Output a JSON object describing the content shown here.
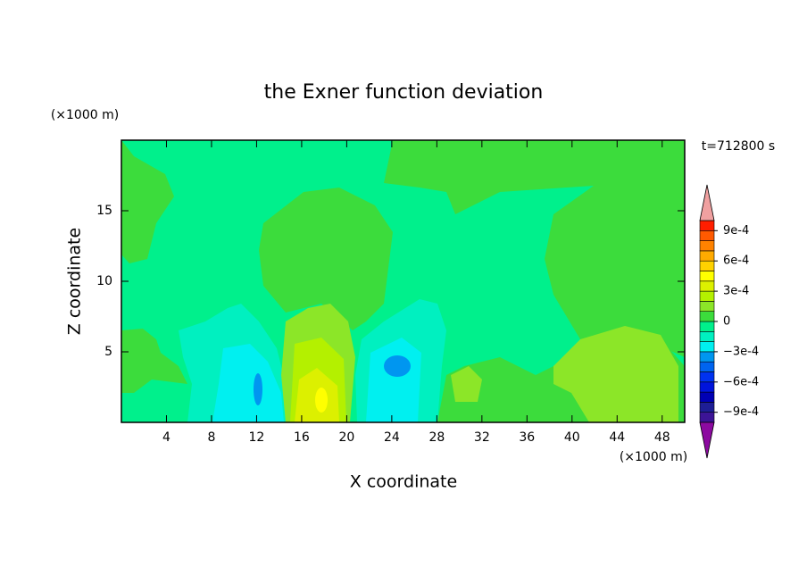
{
  "chart_data": {
    "type": "contour",
    "title": "the Exner function deviation",
    "x_label": "X coordinate",
    "y_label": "Z coordinate",
    "x_unit": "(×1000 m)",
    "y_unit": "(×1000 m)",
    "time_label": "t=712800 s",
    "xlim": [
      0,
      50
    ],
    "xticks": [
      4,
      8,
      12,
      16,
      20,
      24,
      28,
      32,
      36,
      40,
      44,
      48
    ],
    "ylim": [
      0,
      20
    ],
    "yticks": [
      5,
      10,
      15
    ],
    "levels": [
      -0.001,
      -0.0009,
      -0.0008,
      -0.0007,
      -0.0006,
      -0.0005,
      -0.0004,
      -0.0003,
      -0.0002,
      -0.0001,
      0,
      0.0001,
      0.0002,
      0.0003,
      0.0004,
      0.0005,
      0.0006,
      0.0007,
      0.0008,
      0.0009,
      0.001
    ],
    "colors": [
      "#8c0aa0",
      "#3c1496",
      "#1e1e96",
      "#0000b4",
      "#0014dc",
      "#0032f0",
      "#0064f0",
      "#0096f0",
      "#00f0f0",
      "#00f0c0",
      "#00f08c",
      "#3cdc3c",
      "#8ce628",
      "#b4f000",
      "#dcf000",
      "#ffff00",
      "#ffd200",
      "#ffaa00",
      "#ff8200",
      "#ff5a00",
      "#ff1e00",
      "#f0a0a0"
    ],
    "colorbar_ticks": [
      {
        "value": 0.0009,
        "label": "9e-4"
      },
      {
        "value": 0.0006,
        "label": "6e-4"
      },
      {
        "value": 0.0003,
        "label": "3e-4"
      },
      0,
      {
        "value": -0.0003,
        "label": "−3e-4"
      },
      {
        "value": -0.0006,
        "label": "−6e-4"
      },
      {
        "value": -0.0009,
        "label": "−9e-4"
      }
    ]
  }
}
